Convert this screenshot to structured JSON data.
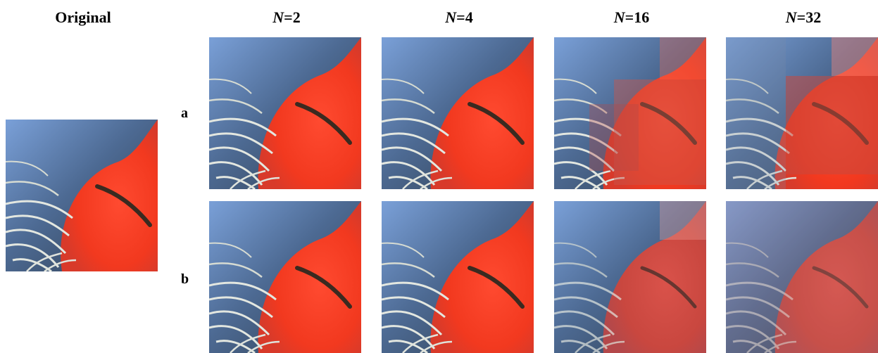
{
  "headers": {
    "original": "Original",
    "n2_prefix": "N",
    "n2_suffix": "=2",
    "n4_prefix": "N",
    "n4_suffix": "=4",
    "n16_prefix": "N",
    "n16_suffix": "=16",
    "n32_prefix": "N",
    "n32_suffix": "=32"
  },
  "row_labels": {
    "a": "a",
    "b": "b"
  },
  "colors": {
    "skin_red": "#f0402a",
    "fur_blue": "#6d8fc4",
    "fur_dark": "#2f3d4f",
    "whisker": "#e6e9e4"
  }
}
